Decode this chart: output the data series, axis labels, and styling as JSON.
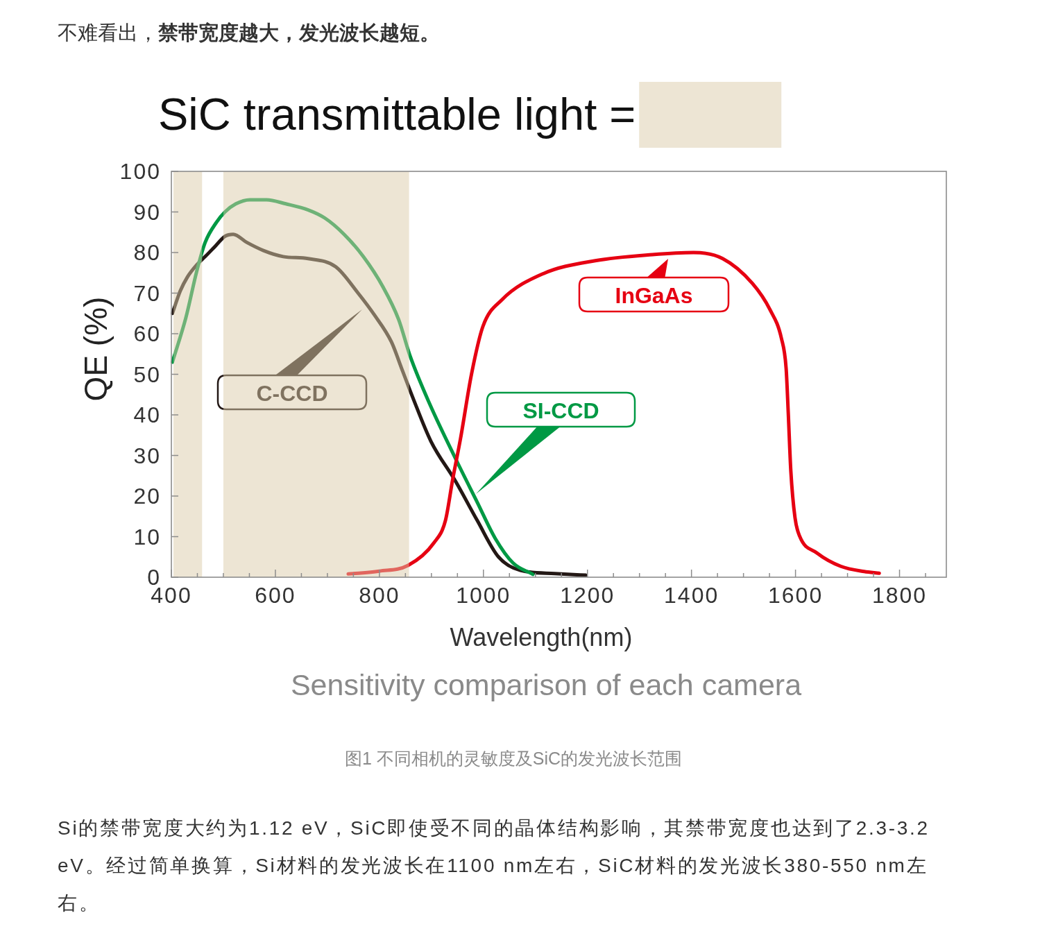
{
  "chart_data": {
    "type": "line",
    "title": "Sensitivity comparison of each camera",
    "xlabel": "Wavelength(nm)",
    "ylabel": "QE (%)",
    "annotations": [
      "不难看出，",
      "禁带宽度越大，发光波长越短。",
      "图1 不同相机的灵敏度及SiC的发光波长范围",
      "Si的禁带宽度大约为1.12 eV，SiC即使受不同的晶体结构影响，其禁带宽度也达到了2.3-3.2 eV。经过简单换算，Si材料的发光波长在1100 nm左右，SiC材料的发光波长380-550 nm左右。"
    ],
    "xlim": [
      400,
      1890
    ],
    "ylim": [
      0,
      100
    ],
    "xticks": [
      400,
      {
        "value": 450,
        "label": null
      },
      {
        "value": 500,
        "label": null
      },
      {
        "value": 550,
        "label": null
      },
      600,
      {
        "value": 650,
        "label": null
      },
      {
        "value": 700,
        "label": null
      },
      {
        "value": 750,
        "label": null
      },
      800,
      {
        "value": 850,
        "label": null
      },
      {
        "value": 900,
        "label": null
      },
      {
        "value": 950,
        "label": null
      },
      1000,
      {
        "value": 1050,
        "label": null
      },
      {
        "value": 1100,
        "label": null
      },
      {
        "value": 1150,
        "label": null
      },
      1200,
      {
        "value": 1250,
        "label": null
      },
      {
        "value": 1300,
        "label": null
      },
      {
        "value": 1350,
        "label": null
      },
      1400,
      {
        "value": 1450,
        "label": null
      },
      {
        "value": 1500,
        "label": null
      },
      {
        "value": 1550,
        "label": null
      },
      1600,
      {
        "value": 1650,
        "label": null
      },
      {
        "value": 1700,
        "label": null
      },
      {
        "value": 1750,
        "label": null
      },
      1800,
      {
        "value": 1850,
        "label": null
      }
    ],
    "yticks": [
      0,
      10,
      20,
      30,
      40,
      50,
      60,
      70,
      80,
      90,
      100
    ],
    "bands": [
      {
        "axis": "x",
        "from": 404,
        "to": 459,
        "color": "#ede5d4",
        "label": "SiC transmittable light ="
      },
      {
        "axis": "x",
        "from": 500,
        "to": 857,
        "color": "#ede5d4"
      }
    ],
    "series": [
      {
        "name": "C-CCD",
        "color": "#231815",
        "x": [
          402,
          417,
          431,
          449,
          465,
          484,
          503,
          519,
          545,
          577,
          615,
          663,
          716,
          759,
          791,
          823,
          844,
          865,
          899,
          947,
          988,
          1029,
          1071,
          1137,
          1197
        ],
        "values": [
          65,
          70.5,
          74,
          77,
          79,
          81.5,
          84,
          84.5,
          82.5,
          80.5,
          79,
          78.5,
          76.5,
          70,
          64.5,
          58,
          51,
          44,
          33.5,
          23.5,
          14,
          5,
          1.7,
          0.9,
          0.5
        ]
      },
      {
        "name": "SI-CCD",
        "color": "#009944",
        "x": [
          402,
          428,
          449,
          465,
          487,
          503,
          524,
          551,
          583,
          620,
          663,
          695,
          732,
          769,
          807,
          837,
          859,
          897,
          948,
          988,
          1023,
          1057,
          1095
        ],
        "values": [
          53,
          64,
          75.5,
          82.5,
          87.5,
          90,
          92,
          93,
          93,
          92,
          90.5,
          88.5,
          84.5,
          79,
          71.5,
          63.5,
          54.5,
          42.6,
          28.8,
          18.5,
          9.5,
          3.5,
          0.7
        ]
      },
      {
        "name": "InGaAs",
        "color": "#e60012",
        "x": [
          740,
          800,
          855,
          905,
          927,
          941,
          956,
          977,
          999,
          1035,
          1115,
          1215,
          1325,
          1404,
          1460,
          1517,
          1551,
          1573,
          1582,
          1586,
          1591,
          1599,
          1608,
          1641,
          1687,
          1732,
          1761
        ],
        "values": [
          0.8,
          1.5,
          2.9,
          8.5,
          14,
          24.2,
          34.2,
          50,
          61.8,
          68.3,
          74.8,
          78,
          79.5,
          80,
          78.5,
          72.4,
          65.9,
          58.8,
          51.4,
          40.7,
          26.2,
          14.7,
          10.1,
          6,
          2.7,
          1.4,
          1
        ]
      }
    ]
  }
}
